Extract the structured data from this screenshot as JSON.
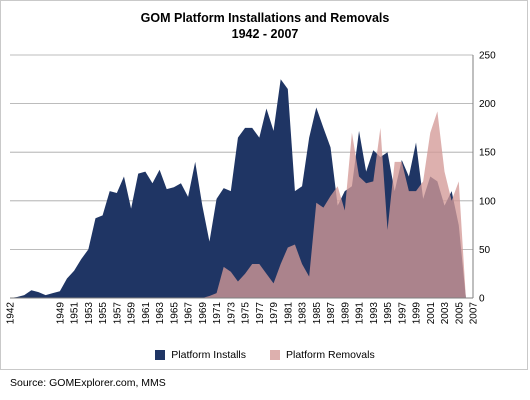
{
  "chart_data": {
    "type": "area",
    "title": "GOM Platform Installations and Removals",
    "subtitle": "1942 - 2007",
    "x": [
      1942,
      1943,
      1944,
      1945,
      1946,
      1947,
      1948,
      1949,
      1950,
      1951,
      1952,
      1953,
      1954,
      1955,
      1956,
      1957,
      1958,
      1959,
      1960,
      1961,
      1962,
      1963,
      1964,
      1965,
      1966,
      1967,
      1968,
      1969,
      1970,
      1971,
      1972,
      1973,
      1974,
      1975,
      1976,
      1977,
      1978,
      1979,
      1980,
      1981,
      1982,
      1983,
      1984,
      1985,
      1986,
      1987,
      1988,
      1989,
      1990,
      1991,
      1992,
      1993,
      1994,
      1995,
      1996,
      1997,
      1998,
      1999,
      2000,
      2001,
      2002,
      2003,
      2004,
      2005,
      2006,
      2007
    ],
    "x_tick_labels": [
      "1942",
      "1949",
      "1951",
      "1953",
      "1955",
      "1957",
      "1959",
      "1961",
      "1963",
      "1965",
      "1967",
      "1969",
      "1971",
      "1973",
      "1975",
      "1977",
      "1979",
      "1981",
      "1983",
      "1985",
      "1987",
      "1989",
      "1991",
      "1993",
      "1995",
      "1997",
      "1999",
      "2001",
      "2003",
      "2005",
      "2007"
    ],
    "ylim": [
      0,
      250
    ],
    "y_ticks": [
      0,
      50,
      100,
      150,
      200,
      250
    ],
    "y_axis_side": "right",
    "grid": "horizontal",
    "legend_position": "bottom",
    "series": [
      {
        "name": "Platform Installs",
        "color": "#1f3564",
        "values": [
          0,
          1,
          3,
          8,
          6,
          3,
          5,
          7,
          20,
          28,
          40,
          50,
          82,
          85,
          110,
          108,
          125,
          92,
          128,
          130,
          118,
          132,
          112,
          114,
          118,
          104,
          140,
          95,
          58,
          102,
          113,
          110,
          165,
          175,
          175,
          165,
          195,
          172,
          225,
          215,
          110,
          115,
          165,
          196,
          175,
          155,
          95,
          110,
          115,
          172,
          130,
          152,
          145,
          150,
          110,
          142,
          125,
          160,
          102,
          125,
          120,
          95,
          110,
          75,
          0,
          0
        ],
        "opacity": 1
      },
      {
        "name": "Platform Removals",
        "color": "#d49a97",
        "values": [
          0,
          0,
          0,
          0,
          0,
          0,
          0,
          0,
          0,
          0,
          0,
          0,
          0,
          0,
          0,
          0,
          0,
          0,
          0,
          0,
          0,
          0,
          0,
          0,
          0,
          0,
          0,
          0,
          2,
          5,
          32,
          27,
          17,
          25,
          35,
          35,
          25,
          15,
          35,
          52,
          55,
          35,
          22,
          98,
          93,
          105,
          115,
          90,
          170,
          125,
          118,
          120,
          175,
          70,
          140,
          140,
          110,
          110,
          120,
          170,
          192,
          130,
          100,
          120,
          0,
          0
        ],
        "opacity": 0.78
      }
    ]
  },
  "source_text": "Source: GOMExplorer.com, MMS"
}
